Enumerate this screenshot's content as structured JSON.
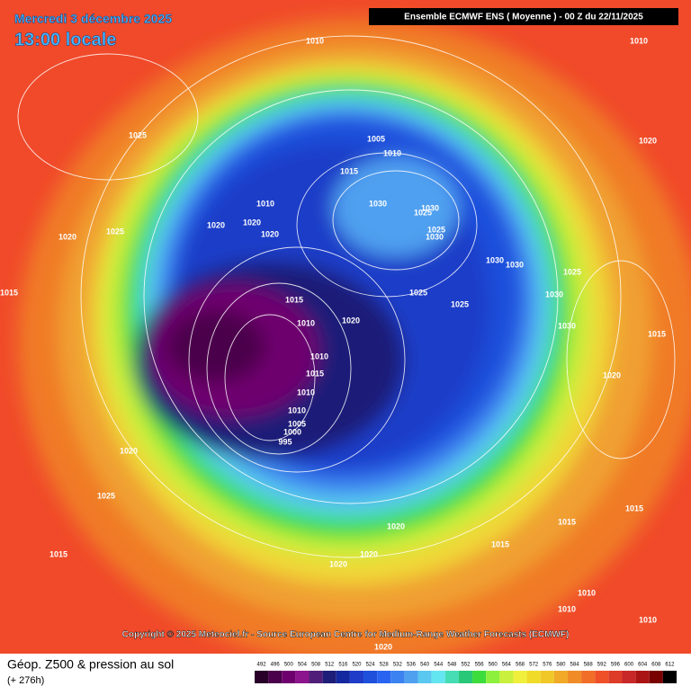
{
  "header": {
    "date": "Mercredi 3 décembre 2025",
    "time": "13:00 locale",
    "model": "Ensemble ECMWF ENS  ( Moyenne )  -  00 Z du 22/11/2025"
  },
  "copyright": "Copyright © 2025 Meteociel.fr - Source European Centre for Medium-Range Weather Forecasts (ECMWF)",
  "footer": {
    "title": "Géop. Z500 & pression au sol",
    "lead": "(+ 276h)"
  },
  "scale": {
    "values": [
      492,
      496,
      500,
      504,
      508,
      512,
      516,
      520,
      524,
      528,
      532,
      536,
      540,
      544,
      548,
      552,
      556,
      560,
      564,
      568,
      572,
      576,
      580,
      584,
      588,
      592,
      596,
      600,
      604,
      608,
      612
    ],
    "colors": [
      "#280028",
      "#4b004b",
      "#6e006e",
      "#8c148c",
      "#501e78",
      "#1e1e78",
      "#1428a0",
      "#1e3cc8",
      "#1e50dc",
      "#2864f0",
      "#3c82f0",
      "#50a0f0",
      "#5ac8f0",
      "#64e6f0",
      "#46dcb4",
      "#28c878",
      "#3cdc3c",
      "#8cf03c",
      "#c8f03c",
      "#f0f03c",
      "#f0dc28",
      "#f0c828",
      "#f0aa28",
      "#f08c28",
      "#f06e28",
      "#f05028",
      "#dc3c28",
      "#c82828",
      "#aa1414",
      "#780000",
      "#000000"
    ]
  },
  "isobar_labels": [
    1010,
    1010,
    1025,
    1005,
    1010,
    1015,
    1020,
    1030,
    1030,
    1025,
    1025,
    1030,
    1020,
    1020,
    1010,
    1020,
    1030,
    1030,
    1025,
    1025,
    1025,
    1030,
    1015,
    1020,
    1010,
    1010,
    1015,
    1010,
    1010,
    1005,
    1000,
    995,
    1020,
    1025,
    1015,
    1015,
    1020,
    1025,
    1020,
    1020,
    1020,
    1015,
    1015,
    1015,
    1010,
    1010,
    1010,
    1020,
    1020,
    1015,
    1030
  ]
}
